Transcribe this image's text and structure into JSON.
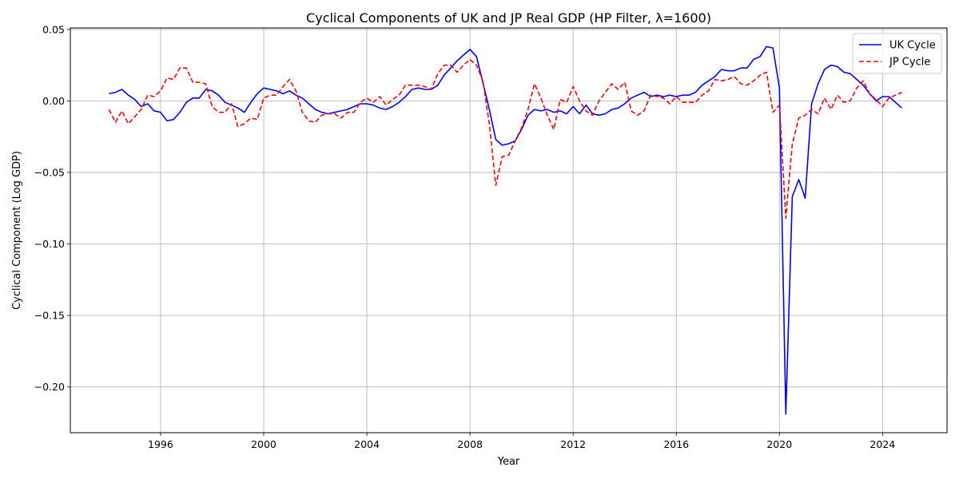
{
  "chart_data": {
    "type": "line",
    "title": "Cyclical Components of UK and JP Real GDP (HP Filter, λ=1600)",
    "xlabel": "Year",
    "ylabel": "Cyclical Component (Log GDP)",
    "xlim": [
      1992.5,
      2026.5
    ],
    "ylim": [
      -0.232,
      0.051
    ],
    "xticks": [
      1996,
      2000,
      2004,
      2008,
      2012,
      2016,
      2020,
      2024
    ],
    "yticks": [
      0.05,
      0.0,
      -0.05,
      -0.1,
      -0.15,
      -0.2
    ],
    "ytick_labels": [
      "0.05",
      "0.00",
      "−0.05",
      "−0.10",
      "−0.15",
      "−0.20"
    ],
    "grid": true,
    "legend_position": "top-right",
    "x": [
      1994.0,
      1994.25,
      1994.5,
      1994.75,
      1995.0,
      1995.25,
      1995.5,
      1995.75,
      1996.0,
      1996.25,
      1996.5,
      1996.75,
      1997.0,
      1997.25,
      1997.5,
      1997.75,
      1998.0,
      1998.25,
      1998.5,
      1998.75,
      1999.0,
      1999.25,
      1999.5,
      1999.75,
      2000.0,
      2000.25,
      2000.5,
      2000.75,
      2001.0,
      2001.25,
      2001.5,
      2001.75,
      2002.0,
      2002.25,
      2002.5,
      2002.75,
      2003.0,
      2003.25,
      2003.5,
      2003.75,
      2004.0,
      2004.25,
      2004.5,
      2004.75,
      2005.0,
      2005.25,
      2005.5,
      2005.75,
      2006.0,
      2006.25,
      2006.5,
      2006.75,
      2007.0,
      2007.25,
      2007.5,
      2007.75,
      2008.0,
      2008.25,
      2008.5,
      2008.75,
      2009.0,
      2009.25,
      2009.5,
      2009.75,
      2010.0,
      2010.25,
      2010.5,
      2010.75,
      2011.0,
      2011.25,
      2011.5,
      2011.75,
      2012.0,
      2012.25,
      2012.5,
      2012.75,
      2013.0,
      2013.25,
      2013.5,
      2013.75,
      2014.0,
      2014.25,
      2014.5,
      2014.75,
      2015.0,
      2015.25,
      2015.5,
      2015.75,
      2016.0,
      2016.25,
      2016.5,
      2016.75,
      2017.0,
      2017.25,
      2017.5,
      2017.75,
      2018.0,
      2018.25,
      2018.5,
      2018.75,
      2019.0,
      2019.25,
      2019.5,
      2019.75,
      2020.0,
      2020.25,
      2020.5,
      2020.75,
      2021.0,
      2021.25,
      2021.5,
      2021.75,
      2022.0,
      2022.25,
      2022.5,
      2022.75,
      2023.0,
      2023.25,
      2023.5,
      2023.75,
      2024.0,
      2024.25,
      2024.5,
      2024.75
    ],
    "series": [
      {
        "name": "UK Cycle",
        "color": "#0000ff",
        "style": "solid",
        "values": [
          0.005,
          0.006,
          0.008,
          0.004,
          0.001,
          -0.004,
          -0.002,
          -0.007,
          -0.008,
          -0.014,
          -0.013,
          -0.008,
          -0.001,
          0.002,
          0.002,
          0.008,
          0.007,
          0.004,
          -0.001,
          -0.003,
          -0.005,
          -0.008,
          -0.001,
          0.005,
          0.009,
          0.008,
          0.007,
          0.005,
          0.007,
          0.004,
          0.002,
          -0.002,
          -0.006,
          -0.008,
          -0.009,
          -0.008,
          -0.007,
          -0.006,
          -0.004,
          -0.002,
          -0.002,
          -0.003,
          -0.005,
          -0.006,
          -0.004,
          -0.001,
          0.003,
          0.008,
          0.009,
          0.008,
          0.008,
          0.011,
          0.018,
          0.023,
          0.028,
          0.032,
          0.036,
          0.031,
          0.013,
          -0.006,
          -0.027,
          -0.031,
          -0.03,
          -0.028,
          -0.02,
          -0.01,
          -0.006,
          -0.007,
          -0.006,
          -0.008,
          -0.007,
          -0.009,
          -0.004,
          -0.009,
          -0.003,
          -0.009,
          -0.01,
          -0.009,
          -0.006,
          -0.005,
          -0.002,
          0.002,
          0.004,
          0.006,
          0.003,
          0.004,
          0.003,
          0.004,
          0.003,
          0.004,
          0.004,
          0.006,
          0.011,
          0.014,
          0.017,
          0.022,
          0.021,
          0.021,
          0.023,
          0.023,
          0.029,
          0.031,
          0.038,
          0.037,
          0.009,
          -0.219,
          -0.067,
          -0.055,
          -0.068,
          -0.002,
          0.012,
          0.022,
          0.025,
          0.024,
          0.02,
          0.019,
          0.015,
          0.011,
          0.005,
          0.0,
          0.003,
          0.003,
          -0.001,
          -0.005
        ]
      },
      {
        "name": "JP Cycle",
        "color": "#ff0000",
        "style": "dashed",
        "values": [
          -0.006,
          -0.015,
          -0.007,
          -0.016,
          -0.011,
          -0.006,
          0.004,
          0.003,
          0.007,
          0.016,
          0.015,
          0.023,
          0.023,
          0.013,
          0.013,
          0.012,
          -0.004,
          -0.008,
          -0.008,
          -0.002,
          -0.018,
          -0.016,
          -0.012,
          -0.013,
          0.002,
          0.004,
          0.004,
          0.01,
          0.015,
          0.007,
          -0.008,
          -0.014,
          -0.015,
          -0.01,
          -0.009,
          -0.009,
          -0.012,
          -0.008,
          -0.008,
          -0.001,
          0.002,
          -0.001,
          0.003,
          -0.003,
          0.001,
          0.004,
          0.011,
          0.011,
          0.011,
          0.01,
          0.008,
          0.019,
          0.025,
          0.025,
          0.02,
          0.025,
          0.029,
          0.025,
          0.014,
          -0.016,
          -0.059,
          -0.039,
          -0.038,
          -0.028,
          -0.019,
          -0.006,
          0.012,
          0.002,
          -0.01,
          -0.02,
          0.001,
          -0.001,
          0.01,
          0.0,
          -0.007,
          -0.01,
          0.0,
          0.006,
          0.012,
          0.008,
          0.013,
          -0.007,
          -0.01,
          -0.007,
          0.004,
          0.003,
          0.002,
          -0.002,
          0.003,
          -0.001,
          -0.001,
          -0.001,
          0.004,
          0.007,
          0.015,
          0.014,
          0.015,
          0.017,
          0.012,
          0.011,
          0.014,
          0.018,
          0.02,
          -0.008,
          -0.003,
          -0.082,
          -0.03,
          -0.012,
          -0.01,
          -0.006,
          -0.009,
          0.002,
          -0.006,
          0.004,
          -0.001,
          0.0,
          0.009,
          0.014,
          0.005,
          0.001,
          -0.004,
          0.002,
          0.004,
          0.006
        ]
      }
    ]
  }
}
